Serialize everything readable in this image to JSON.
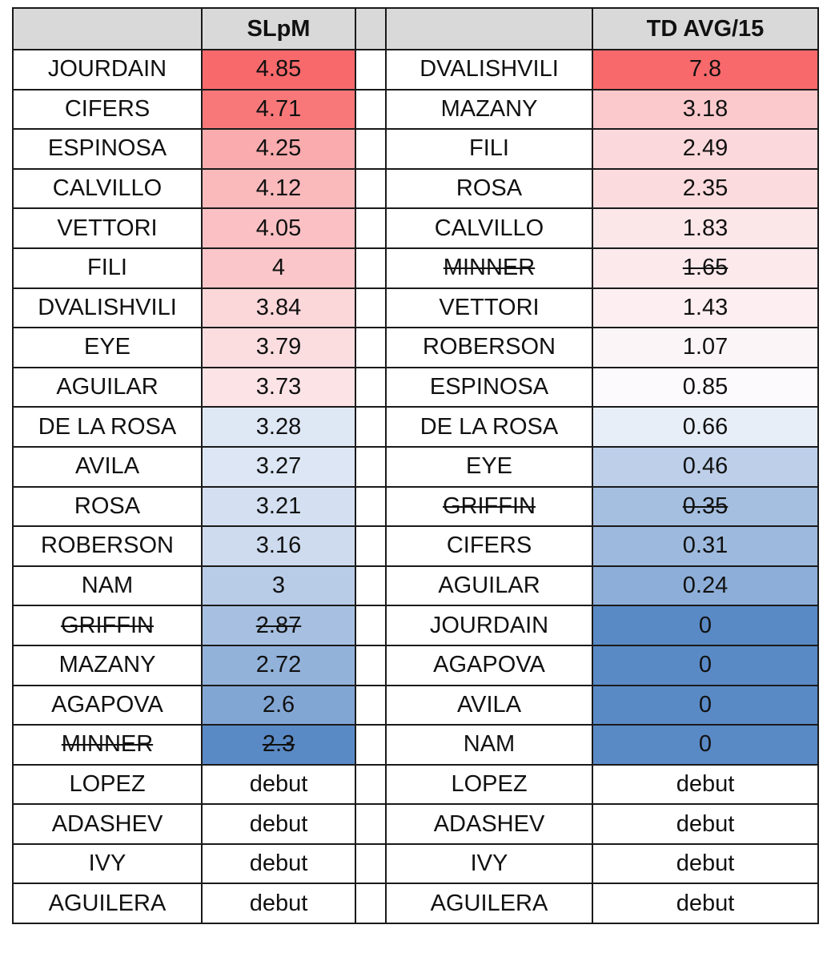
{
  "headers": {
    "left_name": "",
    "left_value": "SLpM",
    "gap": "",
    "right_name": "",
    "right_value": "TD AVG/15"
  },
  "colors": {
    "high": "#f8696b",
    "mid": "#fcfcff",
    "low": "#5a8ac6",
    "header_bg": "#d9d9d9"
  },
  "slpm": [
    {
      "name": "JOURDAIN",
      "value": "4.85",
      "struck": false
    },
    {
      "name": "CIFERS",
      "value": "4.71",
      "struck": false
    },
    {
      "name": "ESPINOSA",
      "value": "4.25",
      "struck": false
    },
    {
      "name": "CALVILLO",
      "value": "4.12",
      "struck": false
    },
    {
      "name": "VETTORI",
      "value": "4.05",
      "struck": false
    },
    {
      "name": "FILI",
      "value": "4",
      "struck": false
    },
    {
      "name": "DVALISHVILI",
      "value": "3.84",
      "struck": false
    },
    {
      "name": "EYE",
      "value": "3.79",
      "struck": false
    },
    {
      "name": "AGUILAR",
      "value": "3.73",
      "struck": false
    },
    {
      "name": "DE LA ROSA",
      "value": "3.28",
      "struck": false
    },
    {
      "name": "AVILA",
      "value": "3.27",
      "struck": false
    },
    {
      "name": "ROSA",
      "value": "3.21",
      "struck": false
    },
    {
      "name": "ROBERSON",
      "value": "3.16",
      "struck": false
    },
    {
      "name": "NAM",
      "value": "3",
      "struck": false
    },
    {
      "name": "GRIFFIN",
      "value": "2.87",
      "struck": true
    },
    {
      "name": "MAZANY",
      "value": "2.72",
      "struck": false
    },
    {
      "name": "AGAPOVA",
      "value": "2.6",
      "struck": false
    },
    {
      "name": "MINNER",
      "value": "2.3",
      "struck": true
    },
    {
      "name": "LOPEZ",
      "value": "debut",
      "struck": false
    },
    {
      "name": "ADASHEV",
      "value": "debut",
      "struck": false
    },
    {
      "name": "IVY",
      "value": "debut",
      "struck": false
    },
    {
      "name": "AGUILERA",
      "value": "debut",
      "struck": false
    }
  ],
  "td_avg": [
    {
      "name": "DVALISHVILI",
      "value": "7.8",
      "struck": false
    },
    {
      "name": "MAZANY",
      "value": "3.18",
      "struck": false
    },
    {
      "name": "FILI",
      "value": "2.49",
      "struck": false
    },
    {
      "name": "ROSA",
      "value": "2.35",
      "struck": false
    },
    {
      "name": "CALVILLO",
      "value": "1.83",
      "struck": false
    },
    {
      "name": "MINNER",
      "value": "1.65",
      "struck": true
    },
    {
      "name": "VETTORI",
      "value": "1.43",
      "struck": false
    },
    {
      "name": "ROBERSON",
      "value": "1.07",
      "struck": false
    },
    {
      "name": "ESPINOSA",
      "value": "0.85",
      "struck": false
    },
    {
      "name": "DE LA ROSA",
      "value": "0.66",
      "struck": false
    },
    {
      "name": "EYE",
      "value": "0.46",
      "struck": false
    },
    {
      "name": "GRIFFIN",
      "value": "0.35",
      "struck": true
    },
    {
      "name": "CIFERS",
      "value": "0.31",
      "struck": false
    },
    {
      "name": "AGUILAR",
      "value": "0.24",
      "struck": false
    },
    {
      "name": "JOURDAIN",
      "value": "0",
      "struck": false
    },
    {
      "name": "AGAPOVA",
      "value": "0",
      "struck": false
    },
    {
      "name": "AVILA",
      "value": "0",
      "struck": false
    },
    {
      "name": "NAM",
      "value": "0",
      "struck": false
    },
    {
      "name": "LOPEZ",
      "value": "debut",
      "struck": false
    },
    {
      "name": "ADASHEV",
      "value": "debut",
      "struck": false
    },
    {
      "name": "IVY",
      "value": "debut",
      "struck": false
    },
    {
      "name": "AGUILERA",
      "value": "debut",
      "struck": false
    }
  ]
}
